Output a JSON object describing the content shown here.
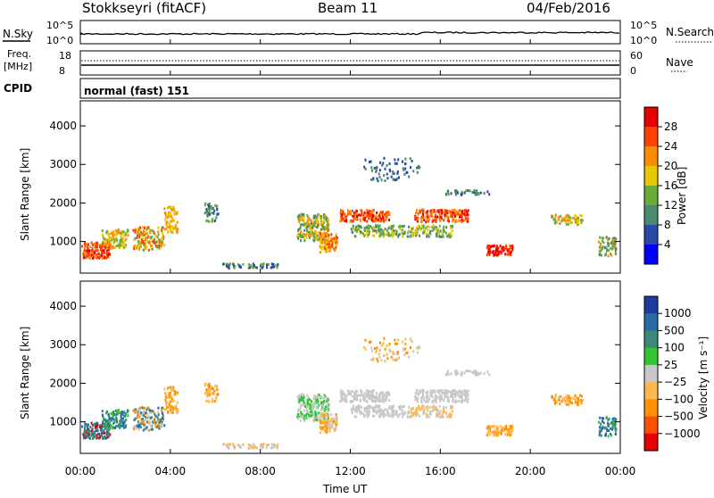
{
  "header": {
    "site": "Stokkseyri (fitACF)",
    "beam": "Beam 11",
    "date": "04/Feb/2016"
  },
  "strips": {
    "nsky_label": "N.Sky",
    "nsearch_label": "N.Search",
    "nsky_ticks": [
      "10^5",
      "10^0"
    ],
    "nsearch_ticks": [
      "10^5",
      "10^0"
    ],
    "freq_label": "Freq.",
    "freq_unit": "[MHz]",
    "freq_ticks": [
      "18",
      "8"
    ],
    "nave_label": "Nave",
    "nave_ticks": [
      "60",
      "0"
    ],
    "cpid_label": "CPID",
    "cpid_value": "normal (fast) 151"
  },
  "chart_data": {
    "type": "heatmap",
    "xlabel": "Time UT",
    "ylabel": "Slant Range [km]",
    "x_ticks": [
      "00:00",
      "04:00",
      "08:00",
      "12:00",
      "16:00",
      "20:00",
      "00:00"
    ],
    "y_ticks": [
      "1000",
      "2000",
      "3000",
      "4000"
    ],
    "panels": [
      {
        "name": "power",
        "colorbar_label": "Power [dB]",
        "colorbar_ticks": [
          "28",
          "24",
          "20",
          "16",
          "12",
          "8",
          "4"
        ],
        "colorbar_colors": [
          "#0000ff",
          "#2b4aa8",
          "#4a8a6e",
          "#6cab3a",
          "#e6c800",
          "#ff8c00",
          "#ff4000",
          "#e60000"
        ]
      },
      {
        "name": "velocity",
        "colorbar_label": "Velocity [m s⁻¹]",
        "colorbar_ticks": [
          "1000",
          "500",
          "100",
          "25",
          "−25",
          "−100",
          "−500",
          "−1000"
        ],
        "colorbar_colors": [
          "#e60000",
          "#ff5000",
          "#ff9000",
          "#ffb84d",
          "#c8c8c8",
          "#33c433",
          "#3a8a7a",
          "#2b6aa8",
          "#1e3aa0"
        ]
      }
    ]
  }
}
